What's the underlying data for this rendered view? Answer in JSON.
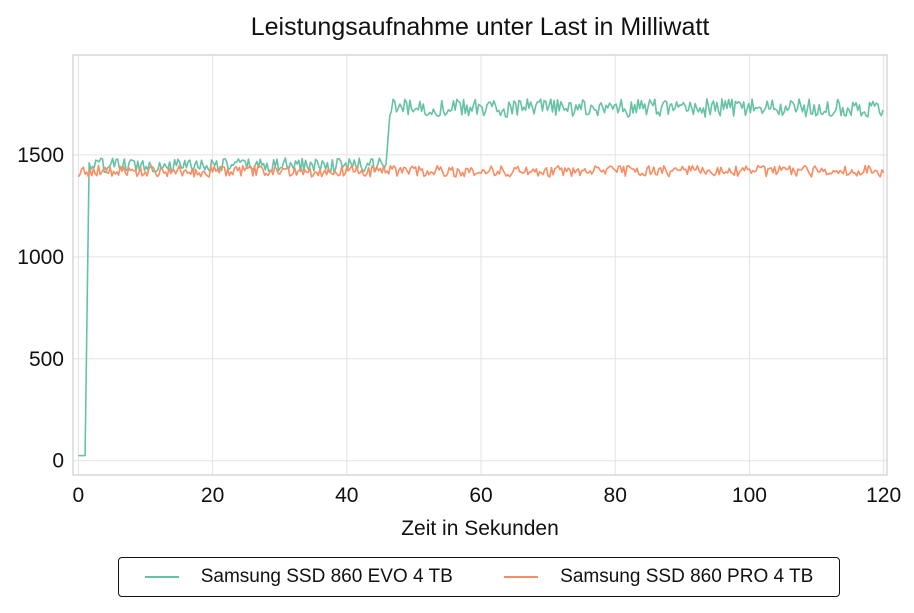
{
  "chart_data": {
    "type": "line",
    "title": "Leistungsaufnahme unter Last in Milliwatt",
    "xlabel": "Zeit in Sekunden",
    "ylabel": "",
    "xlim": [
      -0.8,
      120.5
    ],
    "ylim": [
      -70,
      1990
    ],
    "xticks": [
      0,
      20,
      40,
      60,
      80,
      100,
      120
    ],
    "yticks": [
      0,
      500,
      1000,
      1500
    ],
    "grid": true,
    "legend_position": "bottom-center",
    "series": [
      {
        "name": "Samsung SSD 860 EVO 4 TB",
        "color": "#66c2a5",
        "segments": [
          {
            "x_from": 0,
            "x_to": 1.2,
            "mean": 25,
            "noise": 0
          },
          {
            "x_from": 1.6,
            "x_to": 45.9,
            "mean": 1450,
            "noise": 35
          },
          {
            "x_from": 46.4,
            "x_to": 120,
            "mean": 1730,
            "noise": 45
          }
        ]
      },
      {
        "name": "Samsung SSD 860 PRO 4 TB",
        "color": "#fc8d62",
        "segments": [
          {
            "x_from": 0,
            "x_to": 120,
            "mean": 1420,
            "noise": 28
          }
        ]
      }
    ]
  }
}
